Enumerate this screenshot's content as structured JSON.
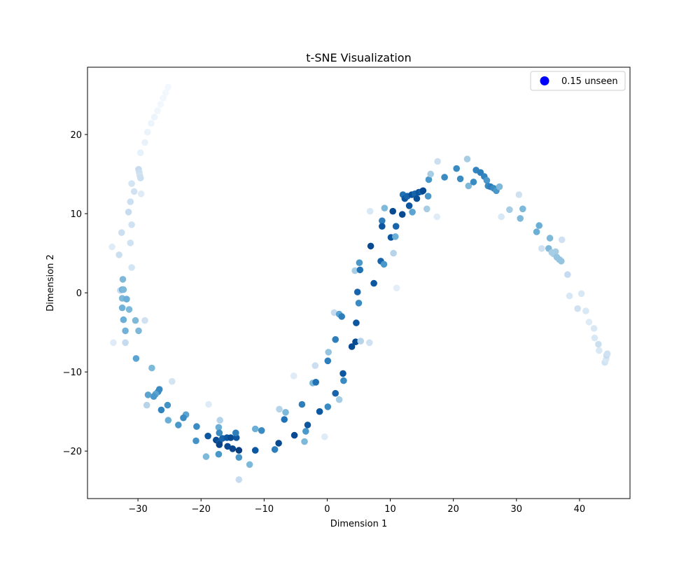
{
  "chart_data": {
    "type": "scatter",
    "title": "t-SNE Visualization",
    "xlabel": "Dimension 1",
    "ylabel": "Dimension 2",
    "xlim": [
      -38,
      48
    ],
    "ylim": [
      -26,
      28.5
    ],
    "xticks": [
      -30,
      -20,
      -10,
      0,
      10,
      20,
      30,
      40
    ],
    "yticks": [
      -20,
      -10,
      0,
      10,
      20
    ],
    "grid": false,
    "legend": {
      "placement": "top-right",
      "entries": [
        {
          "label": "0.15 unseen",
          "color": "#0000ff"
        }
      ]
    },
    "colormap": [
      "#f7fbff",
      "#deebf7",
      "#c6dbef",
      "#9ecae1",
      "#6baed6",
      "#4292c6",
      "#2171b5",
      "#08519c",
      "#08306b"
    ],
    "points": [
      [
        -25.2,
        26.0,
        0.02
      ],
      [
        -25.6,
        25.3,
        0.02
      ],
      [
        -26.0,
        24.6,
        0.03
      ],
      [
        -26.4,
        23.8,
        0.03
      ],
      [
        -26.9,
        23.0,
        0.04
      ],
      [
        -27.4,
        22.2,
        0.05
      ],
      [
        -27.9,
        21.4,
        0.05
      ],
      [
        -28.5,
        20.3,
        0.06
      ],
      [
        -28.9,
        19.0,
        0.07
      ],
      [
        -29.6,
        17.7,
        0.08
      ],
      [
        -29.9,
        15.6,
        0.25
      ],
      [
        -29.8,
        15.2,
        0.22
      ],
      [
        -29.7,
        14.8,
        0.2
      ],
      [
        -29.6,
        14.5,
        0.22
      ],
      [
        -31.0,
        13.8,
        0.18
      ],
      [
        -30.6,
        12.8,
        0.2
      ],
      [
        -29.5,
        12.5,
        0.12
      ],
      [
        -31.2,
        11.5,
        0.22
      ],
      [
        -31.5,
        10.2,
        0.24
      ],
      [
        -31.0,
        8.6,
        0.2
      ],
      [
        -32.6,
        7.6,
        0.22
      ],
      [
        -31.2,
        6.3,
        0.2
      ],
      [
        -34.1,
        5.8,
        0.12
      ],
      [
        -33.0,
        4.8,
        0.22
      ],
      [
        -31.0,
        3.2,
        0.18
      ],
      [
        -32.4,
        1.7,
        0.45
      ],
      [
        -32.8,
        0.3,
        0.25
      ],
      [
        -32.5,
        0.4,
        0.5
      ],
      [
        -32.3,
        0.4,
        0.45
      ],
      [
        -32.5,
        -0.7,
        0.45
      ],
      [
        -31.8,
        -0.8,
        0.5
      ],
      [
        -32.5,
        -1.9,
        0.48
      ],
      [
        -31.4,
        -2.1,
        0.45
      ],
      [
        -32.3,
        -3.4,
        0.5
      ],
      [
        -30.4,
        -3.5,
        0.45
      ],
      [
        -28.9,
        -3.5,
        0.2
      ],
      [
        -32.0,
        -4.8,
        0.48
      ],
      [
        -29.9,
        -4.8,
        0.45
      ],
      [
        -33.9,
        -6.3,
        0.12
      ],
      [
        -32.0,
        -6.3,
        0.25
      ],
      [
        -30.3,
        -8.3,
        0.55
      ],
      [
        -27.8,
        -9.5,
        0.45
      ],
      [
        -24.6,
        -11.2,
        0.18
      ],
      [
        -26.6,
        -12.2,
        0.65
      ],
      [
        -26.8,
        -12.5,
        0.65
      ],
      [
        -27.2,
        -12.8,
        0.55
      ],
      [
        -27.5,
        -13.1,
        0.6
      ],
      [
        -28.4,
        -12.9,
        0.55
      ],
      [
        -28.6,
        -14.2,
        0.3
      ],
      [
        -26.3,
        -14.8,
        0.68
      ],
      [
        -25.3,
        -14.2,
        0.62
      ],
      [
        -22.4,
        -15.4,
        0.55
      ],
      [
        -22.8,
        -15.8,
        0.65
      ],
      [
        -25.2,
        -16.1,
        0.5
      ],
      [
        -23.6,
        -16.7,
        0.6
      ],
      [
        -20.7,
        -16.9,
        0.65
      ],
      [
        -20.8,
        -18.7,
        0.62
      ],
      [
        -18.8,
        -14.1,
        0.12
      ],
      [
        -18.9,
        -18.1,
        0.85
      ],
      [
        -17.6,
        -18.6,
        0.9
      ],
      [
        -17.1,
        -18.9,
        0.85
      ],
      [
        -16.6,
        -18.4,
        0.8
      ],
      [
        -15.9,
        -18.3,
        0.85
      ],
      [
        -15.3,
        -18.3,
        0.9
      ],
      [
        -14.4,
        -18.3,
        0.85
      ],
      [
        -14.5,
        -17.7,
        0.7
      ],
      [
        -17.1,
        -19.2,
        0.92
      ],
      [
        -15.8,
        -19.4,
        0.9
      ],
      [
        -15.0,
        -19.7,
        0.92
      ],
      [
        -14.0,
        -19.9,
        0.95
      ],
      [
        -17.0,
        -16.1,
        0.3
      ],
      [
        -17.2,
        -17.0,
        0.5
      ],
      [
        -17.1,
        -17.7,
        0.65
      ],
      [
        -17.2,
        -20.4,
        0.6
      ],
      [
        -14.0,
        -20.8,
        0.6
      ],
      [
        -19.2,
        -20.7,
        0.45
      ],
      [
        -12.3,
        -21.7,
        0.45
      ],
      [
        -14.0,
        -23.6,
        0.25
      ],
      [
        -11.4,
        -17.2,
        0.5
      ],
      [
        -10.4,
        -17.4,
        0.65
      ],
      [
        -11.4,
        -19.9,
        0.85
      ],
      [
        -8.3,
        -19.8,
        0.7
      ],
      [
        -7.7,
        -19.0,
        0.9
      ],
      [
        -7.6,
        -14.7,
        0.3
      ],
      [
        -6.6,
        -15.1,
        0.45
      ],
      [
        -6.8,
        -16.0,
        0.75
      ],
      [
        -5.2,
        -18.0,
        0.9
      ],
      [
        -4.0,
        -14.1,
        0.7
      ],
      [
        -3.6,
        -18.8,
        0.45
      ],
      [
        -3.4,
        -17.5,
        0.6
      ],
      [
        -3.1,
        -16.7,
        0.85
      ],
      [
        -5.3,
        -10.5,
        0.12
      ],
      [
        -2.3,
        -11.4,
        0.45
      ],
      [
        -1.8,
        -11.3,
        0.75
      ],
      [
        -1.9,
        -9.2,
        0.22
      ],
      [
        -1.2,
        -15.0,
        0.85
      ],
      [
        -0.4,
        -18.2,
        0.12
      ],
      [
        0.1,
        -14.4,
        0.65
      ],
      [
        0.1,
        -8.6,
        0.7
      ],
      [
        0.2,
        -7.5,
        0.4
      ],
      [
        1.1,
        -2.5,
        0.25
      ],
      [
        1.3,
        -12.7,
        0.8
      ],
      [
        1.3,
        -5.9,
        0.7
      ],
      [
        1.9,
        -13.5,
        0.35
      ],
      [
        1.9,
        -2.7,
        0.55
      ],
      [
        2.3,
        -3.0,
        0.7
      ],
      [
        2.5,
        -10.2,
        0.85
      ],
      [
        2.6,
        -11.1,
        0.65
      ],
      [
        3.9,
        -6.8,
        0.9
      ],
      [
        4.5,
        -6.2,
        0.9
      ],
      [
        4.4,
        2.8,
        0.35
      ],
      [
        4.6,
        -3.8,
        0.85
      ],
      [
        4.8,
        0.1,
        0.8
      ],
      [
        5.0,
        -1.3,
        0.65
      ],
      [
        5.1,
        3.8,
        0.6
      ],
      [
        5.2,
        2.9,
        0.75
      ],
      [
        5.3,
        -6.1,
        0.3
      ],
      [
        6.7,
        -6.3,
        0.2
      ],
      [
        6.8,
        10.3,
        0.15
      ],
      [
        6.9,
        5.9,
        0.9
      ],
      [
        7.4,
        1.2,
        0.85
      ],
      [
        8.5,
        4.0,
        0.8
      ],
      [
        8.7,
        9.1,
        0.7
      ],
      [
        8.7,
        8.4,
        0.85
      ],
      [
        9.0,
        3.6,
        0.6
      ],
      [
        9.1,
        10.7,
        0.45
      ],
      [
        10.1,
        7.0,
        0.85
      ],
      [
        10.4,
        10.3,
        0.9
      ],
      [
        10.5,
        5.0,
        0.3
      ],
      [
        10.8,
        7.1,
        0.5
      ],
      [
        10.9,
        8.4,
        0.8
      ],
      [
        11.0,
        0.6,
        0.1
      ],
      [
        11.9,
        9.9,
        0.9
      ],
      [
        12.0,
        12.4,
        0.75
      ],
      [
        12.3,
        11.9,
        0.85
      ],
      [
        12.7,
        12.2,
        0.8
      ],
      [
        13.0,
        11.0,
        0.85
      ],
      [
        13.4,
        12.4,
        0.88
      ],
      [
        13.5,
        10.2,
        0.55
      ],
      [
        13.9,
        12.5,
        0.8
      ],
      [
        14.2,
        11.9,
        0.88
      ],
      [
        14.5,
        12.7,
        0.85
      ],
      [
        15.0,
        12.8,
        0.8
      ],
      [
        15.2,
        12.9,
        0.9
      ],
      [
        15.8,
        10.6,
        0.35
      ],
      [
        16.0,
        12.2,
        0.6
      ],
      [
        16.1,
        14.3,
        0.6
      ],
      [
        16.4,
        15.0,
        0.35
      ],
      [
        17.4,
        9.6,
        0.12
      ],
      [
        17.5,
        16.6,
        0.22
      ],
      [
        18.6,
        14.6,
        0.65
      ],
      [
        20.5,
        15.7,
        0.65
      ],
      [
        21.1,
        14.4,
        0.65
      ],
      [
        22.2,
        16.9,
        0.35
      ],
      [
        22.4,
        13.5,
        0.45
      ],
      [
        23.2,
        14.0,
        0.65
      ],
      [
        23.6,
        15.5,
        0.68
      ],
      [
        24.3,
        15.2,
        0.7
      ],
      [
        24.9,
        14.7,
        0.68
      ],
      [
        25.3,
        14.2,
        0.6
      ],
      [
        25.5,
        13.5,
        0.65
      ],
      [
        25.9,
        13.4,
        0.7
      ],
      [
        26.4,
        13.2,
        0.65
      ],
      [
        26.8,
        12.9,
        0.6
      ],
      [
        27.3,
        13.4,
        0.45
      ],
      [
        27.6,
        9.6,
        0.15
      ],
      [
        28.9,
        10.5,
        0.35
      ],
      [
        30.4,
        12.4,
        0.2
      ],
      [
        30.6,
        9.4,
        0.45
      ],
      [
        31.0,
        10.6,
        0.45
      ],
      [
        33.2,
        7.7,
        0.5
      ],
      [
        33.6,
        8.5,
        0.5
      ],
      [
        34.0,
        5.6,
        0.2
      ],
      [
        35.1,
        5.6,
        0.45
      ],
      [
        35.3,
        6.9,
        0.45
      ],
      [
        35.6,
        5.1,
        0.35
      ],
      [
        35.9,
        4.9,
        0.35
      ],
      [
        36.2,
        5.2,
        0.35
      ],
      [
        36.4,
        4.5,
        0.4
      ],
      [
        36.8,
        4.2,
        0.4
      ],
      [
        37.1,
        4.0,
        0.4
      ],
      [
        37.2,
        6.7,
        0.2
      ],
      [
        38.1,
        2.3,
        0.25
      ],
      [
        38.4,
        -0.4,
        0.15
      ],
      [
        39.7,
        -2.0,
        0.2
      ],
      [
        40.3,
        -0.1,
        0.15
      ],
      [
        41.0,
        -2.3,
        0.15
      ],
      [
        41.5,
        -3.7,
        0.12
      ],
      [
        42.3,
        -4.5,
        0.15
      ],
      [
        42.4,
        -5.7,
        0.15
      ],
      [
        43.0,
        -6.5,
        0.22
      ],
      [
        43.1,
        -7.3,
        0.15
      ],
      [
        44.0,
        -8.8,
        0.18
      ],
      [
        44.2,
        -8.4,
        0.15
      ],
      [
        44.3,
        -7.9,
        0.25
      ],
      [
        44.4,
        -7.7,
        0.2
      ]
    ]
  }
}
